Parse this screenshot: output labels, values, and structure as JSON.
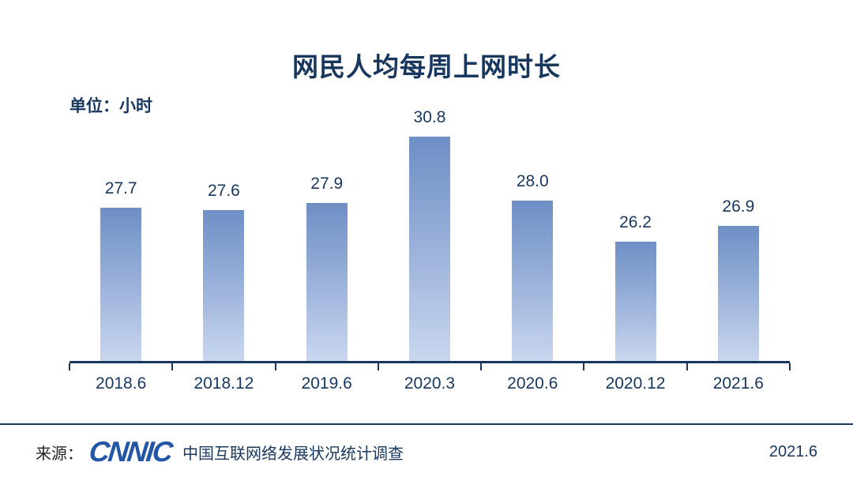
{
  "colors": {
    "text_navy": "#17375E",
    "bar_gradient_top": "#6E8FC5",
    "bar_gradient_bottom": "#C9D7EF",
    "axis": "#17375E",
    "logo_blue": "#2456A8"
  },
  "chart_data": {
    "type": "bar",
    "title": "网民人均每周上网时长",
    "unit_label": "单位：小时",
    "categories": [
      "2018.6",
      "2018.12",
      "2019.6",
      "2020.3",
      "2020.6",
      "2020.12",
      "2021.6"
    ],
    "values": [
      27.7,
      27.6,
      27.9,
      30.8,
      28.0,
      26.2,
      26.9
    ],
    "xlabel": "",
    "ylabel": "小时",
    "ylim": [
      21,
      31
    ],
    "grid": false,
    "legend": false,
    "value_labels_shown": true
  },
  "footer": {
    "source_prefix": "来源：",
    "logo_text": "CNNIC",
    "source_text": "中国互联网络发展状况统计调查",
    "date": "2021.6"
  }
}
